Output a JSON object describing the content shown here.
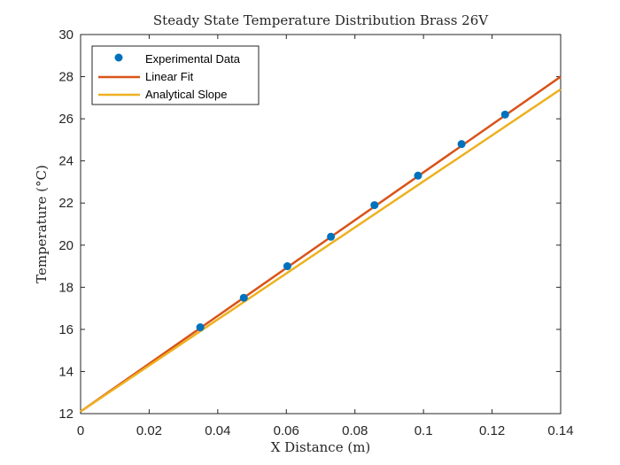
{
  "chart_data": {
    "type": "line",
    "title": "Steady State Temperature Distribution Brass 26V",
    "xlabel": "X Distance (m)",
    "ylabel": "Temperature (°C)",
    "xlim": [
      0,
      0.14
    ],
    "ylim": [
      12,
      30
    ],
    "x_ticks": [
      "0",
      "0.02",
      "0.04",
      "0.06",
      "0.08",
      "0.1",
      "0.12",
      "0.14"
    ],
    "y_ticks": [
      "12",
      "14",
      "16",
      "18",
      "20",
      "22",
      "24",
      "26",
      "28",
      "30"
    ],
    "grid": false,
    "legend_position": "top-left",
    "series": [
      {
        "name": "Experimental Data",
        "kind": "scatter",
        "color": "#0072BD",
        "x": [
          0.0349,
          0.0476,
          0.0603,
          0.073,
          0.0857,
          0.0984,
          0.1111,
          0.1238
        ],
        "y": [
          16.1,
          17.5,
          19.0,
          20.4,
          21.9,
          23.3,
          24.8,
          26.2
        ]
      },
      {
        "name": "Linear Fit",
        "kind": "line",
        "color": "#D95319",
        "x": [
          0,
          0.14
        ],
        "y": [
          12.1,
          28.0
        ]
      },
      {
        "name": "Analytical Slope",
        "kind": "line",
        "color": "#EDB120",
        "x": [
          0,
          0.14
        ],
        "y": [
          12.1,
          27.4
        ]
      }
    ]
  }
}
